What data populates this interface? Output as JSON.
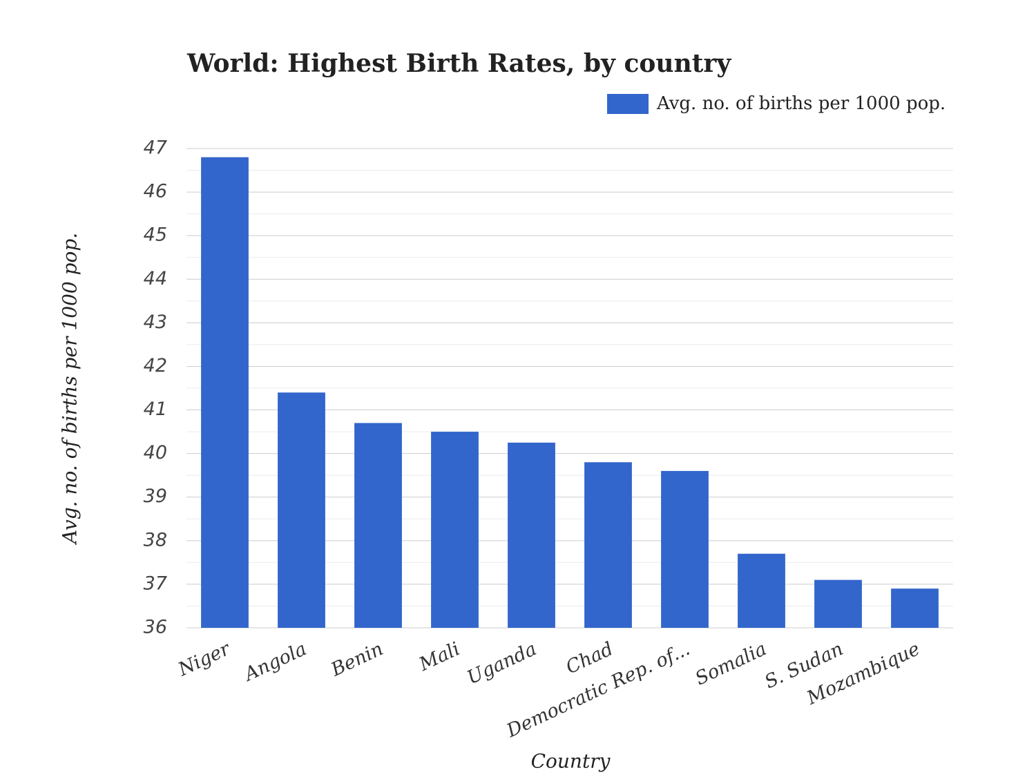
{
  "chart_data": {
    "type": "bar",
    "title": "World: Highest Birth Rates, by country",
    "x_label": "Country",
    "y_label": "Avg. no. of births per 1000 pop.",
    "categories": [
      "Niger",
      "Angola",
      "Benin",
      "Mali",
      "Uganda",
      "Chad",
      "Democratic Rep. of...",
      "Somalia",
      "S. Sudan",
      "Mozambique"
    ],
    "series": [
      {
        "name": "Avg. no. of births per 1000 pop.",
        "color": "#3366cc",
        "values": [
          46.8,
          41.4,
          40.7,
          40.5,
          40.25,
          39.8,
          39.6,
          37.7,
          37.1,
          36.9
        ]
      }
    ],
    "ylim": [
      36,
      47
    ],
    "yticks": [
      36,
      37,
      38,
      39,
      40,
      41,
      42,
      43,
      44,
      45,
      46,
      47
    ],
    "minor_yticks": [
      36.5,
      37.5,
      38.5,
      39.5,
      40.5,
      41.5,
      42.5,
      43.5,
      44.5,
      45.5,
      46.5
    ],
    "grid": true,
    "legend": "top-right"
  }
}
